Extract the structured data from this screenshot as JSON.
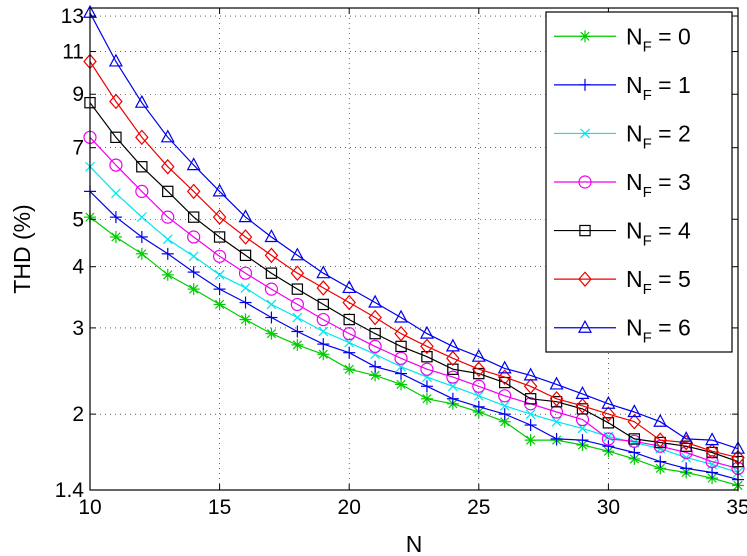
{
  "chart_data": {
    "type": "line",
    "xlabel": "N",
    "ylabel": "THD (%)",
    "yscale": "log",
    "xlim": [
      10,
      35
    ],
    "ylim": [
      1.4,
      13.5
    ],
    "xticks": [
      10,
      15,
      20,
      25,
      30,
      35
    ],
    "yticks": [
      1.4,
      2,
      3,
      4,
      5,
      7,
      9,
      11,
      13
    ],
    "grid": true,
    "legend_position": "top-right",
    "x": [
      10,
      11,
      12,
      13,
      14,
      15,
      16,
      17,
      18,
      19,
      20,
      21,
      22,
      23,
      24,
      25,
      26,
      27,
      28,
      29,
      30,
      31,
      32,
      33,
      34,
      35
    ],
    "series": [
      {
        "name": "N_F = 0",
        "label_main": "N",
        "label_sub": "F",
        "label_rest": " = 0",
        "color": "#00cc00",
        "marker": "star",
        "values": [
          5.05,
          4.6,
          4.25,
          3.85,
          3.6,
          3.35,
          3.12,
          2.92,
          2.77,
          2.65,
          2.47,
          2.4,
          2.3,
          2.15,
          2.1,
          2.02,
          1.93,
          1.77,
          1.77,
          1.73,
          1.68,
          1.62,
          1.55,
          1.52,
          1.48,
          1.43
        ]
      },
      {
        "name": "N_F = 1",
        "label_main": "N",
        "label_sub": "F",
        "label_rest": " = 1",
        "color": "#0000ee",
        "marker": "plus",
        "values": [
          5.7,
          5.05,
          4.6,
          4.25,
          3.9,
          3.6,
          3.38,
          3.15,
          2.95,
          2.78,
          2.67,
          2.5,
          2.42,
          2.28,
          2.15,
          2.07,
          2.0,
          1.9,
          1.78,
          1.77,
          1.72,
          1.67,
          1.6,
          1.55,
          1.52,
          1.47
        ]
      },
      {
        "name": "N_F = 2",
        "label_main": "N",
        "label_sub": "F",
        "label_rest": " = 2",
        "color": "#00e5ee",
        "marker": "x",
        "values": [
          6.4,
          5.65,
          5.05,
          4.55,
          4.2,
          3.85,
          3.62,
          3.35,
          3.15,
          2.95,
          2.8,
          2.65,
          2.5,
          2.38,
          2.28,
          2.18,
          2.08,
          2.0,
          1.93,
          1.87,
          1.8,
          1.75,
          1.7,
          1.63,
          1.58,
          1.52
        ]
      },
      {
        "name": "N_F = 3",
        "label_main": "N",
        "label_sub": "F",
        "label_rest": " = 3",
        "color": "#ee00ee",
        "marker": "circle",
        "values": [
          7.35,
          6.45,
          5.7,
          5.05,
          4.6,
          4.2,
          3.88,
          3.6,
          3.35,
          3.12,
          2.92,
          2.75,
          2.6,
          2.47,
          2.38,
          2.28,
          2.18,
          2.1,
          2.02,
          1.95,
          1.78,
          1.76,
          1.72,
          1.67,
          1.6,
          1.55
        ]
      },
      {
        "name": "N_F = 4",
        "label_main": "N",
        "label_sub": "F",
        "label_rest": " = 4",
        "color": "#000000",
        "marker": "square",
        "values": [
          8.65,
          7.35,
          6.4,
          5.7,
          5.05,
          4.6,
          4.22,
          3.88,
          3.6,
          3.35,
          3.12,
          2.92,
          2.75,
          2.62,
          2.47,
          2.42,
          2.32,
          2.15,
          2.12,
          2.05,
          1.92,
          1.78,
          1.75,
          1.72,
          1.67,
          1.6
        ]
      },
      {
        "name": "N_F = 5",
        "label_main": "N",
        "label_sub": "F",
        "label_rest": " = 5",
        "color": "#ee0000",
        "marker": "diamond",
        "values": [
          10.5,
          8.7,
          7.35,
          6.4,
          5.7,
          5.05,
          4.6,
          4.22,
          3.88,
          3.62,
          3.38,
          3.15,
          2.92,
          2.75,
          2.6,
          2.47,
          2.38,
          2.28,
          2.15,
          2.08,
          2.0,
          1.93,
          1.77,
          1.75,
          1.68,
          1.63
        ]
      },
      {
        "name": "N_F = 6",
        "label_main": "N",
        "label_sub": "F",
        "label_rest": " = 6",
        "color": "#0000ee",
        "marker": "triangle",
        "values": [
          13.2,
          10.5,
          8.65,
          7.35,
          6.45,
          5.7,
          5.05,
          4.6,
          4.22,
          3.88,
          3.62,
          3.38,
          3.15,
          2.92,
          2.75,
          2.62,
          2.48,
          2.4,
          2.3,
          2.2,
          2.1,
          2.02,
          1.93,
          1.78,
          1.77,
          1.7
        ]
      }
    ]
  }
}
